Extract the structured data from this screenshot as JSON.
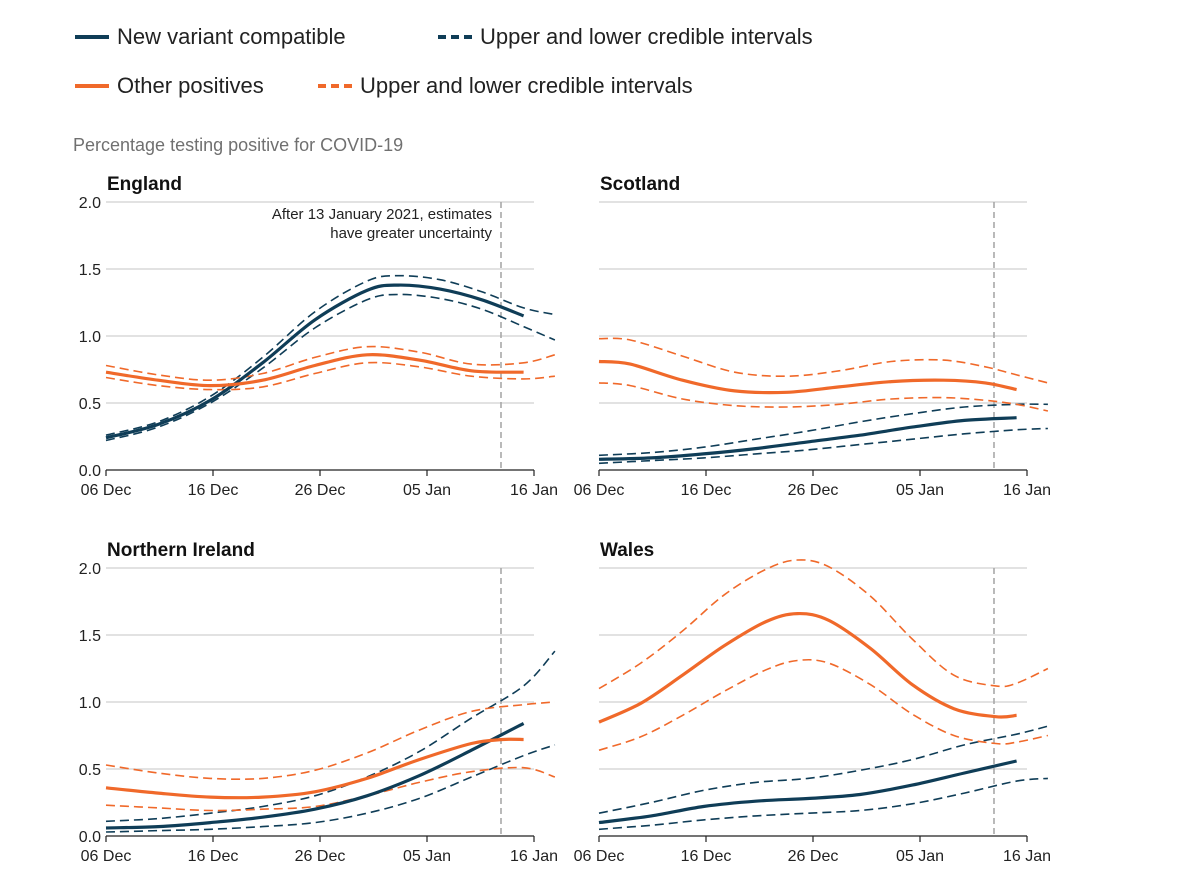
{
  "legend": {
    "items": [
      {
        "label": "New variant compatible",
        "style": "solid",
        "color": "#0f3d57"
      },
      {
        "label": "Upper and lower credible intervals",
        "style": "dashed",
        "color": "#0f3d57"
      },
      {
        "label": "Other positives",
        "style": "solid",
        "color": "#f0692a"
      },
      {
        "label": "Upper and lower credible intervals",
        "style": "dashed",
        "color": "#f0692a"
      }
    ]
  },
  "y_title": "Percentage testing positive for COVID-19",
  "colors": {
    "new_variant": "#0f3d57",
    "other": "#f0692a",
    "grid": "#d0d0d0",
    "axis": "#222222",
    "ref_line": "#a8a8a8"
  },
  "chart_data": [
    {
      "type": "line",
      "title": "England",
      "annotation": [
        "After 13 January 2021, estimates",
        "have greater uncertainty"
      ],
      "ref_line_date": "13 Jan",
      "x_ticks": [
        "06 Dec",
        "16 Dec",
        "26 Dec",
        "05 Jan",
        "16 Jan"
      ],
      "y_ticks": [
        "0.0",
        "0.5",
        "1.0",
        "1.5",
        "2.0"
      ],
      "ylim": [
        0,
        2
      ],
      "series": [
        {
          "name": "New variant compatible",
          "role": "main",
          "color": "#0f3d57",
          "x": [
            0,
            5,
            10,
            15,
            20,
            25,
            28,
            32,
            36,
            40
          ],
          "y": [
            0.24,
            0.34,
            0.52,
            0.8,
            1.12,
            1.34,
            1.38,
            1.35,
            1.27,
            1.15
          ]
        },
        {
          "name": "Upper and lower credible intervals",
          "role": "ci",
          "color": "#0f3d57",
          "x": [
            0,
            5,
            10,
            15,
            20,
            25,
            28,
            32,
            36,
            40,
            43
          ],
          "y": [
            0.26,
            0.36,
            0.55,
            0.84,
            1.18,
            1.41,
            1.45,
            1.42,
            1.33,
            1.21,
            1.16
          ]
        },
        {
          "role": "ci",
          "color": "#0f3d57",
          "x": [
            0,
            5,
            10,
            15,
            20,
            25,
            28,
            32,
            36,
            40,
            43
          ],
          "y": [
            0.22,
            0.32,
            0.5,
            0.76,
            1.06,
            1.27,
            1.31,
            1.28,
            1.2,
            1.07,
            0.97
          ]
        },
        {
          "name": "Other positives",
          "role": "main",
          "color": "#f0692a",
          "x": [
            0,
            5,
            10,
            15,
            20,
            25,
            30,
            35,
            40
          ],
          "y": [
            0.73,
            0.67,
            0.63,
            0.67,
            0.78,
            0.86,
            0.82,
            0.74,
            0.73
          ]
        },
        {
          "name": "Upper and lower credible intervals",
          "role": "ci",
          "color": "#f0692a",
          "x": [
            0,
            5,
            10,
            15,
            20,
            25,
            30,
            35,
            40,
            43
          ],
          "y": [
            0.78,
            0.71,
            0.67,
            0.72,
            0.84,
            0.92,
            0.88,
            0.79,
            0.8,
            0.86
          ]
        },
        {
          "role": "ci",
          "color": "#f0692a",
          "x": [
            0,
            5,
            10,
            15,
            20,
            25,
            30,
            35,
            40,
            43
          ],
          "y": [
            0.69,
            0.63,
            0.6,
            0.62,
            0.72,
            0.8,
            0.77,
            0.7,
            0.68,
            0.7
          ]
        }
      ]
    },
    {
      "type": "line",
      "title": "Scotland",
      "ref_line_date": "13 Jan",
      "x_ticks": [
        "06 Dec",
        "16 Dec",
        "26 Dec",
        "05 Jan",
        "16 Jan"
      ],
      "y_ticks": [
        "0.0",
        "0.5",
        "1.0",
        "1.5",
        "2.0"
      ],
      "ylim": [
        0,
        2
      ],
      "series": [
        {
          "name": "New variant compatible",
          "role": "main",
          "color": "#0f3d57",
          "x": [
            0,
            5,
            10,
            15,
            20,
            25,
            30,
            35,
            40
          ],
          "y": [
            0.08,
            0.09,
            0.12,
            0.16,
            0.21,
            0.26,
            0.32,
            0.37,
            0.39
          ]
        },
        {
          "name": "Upper and lower credible intervals",
          "role": "ci",
          "color": "#0f3d57",
          "x": [
            0,
            5,
            10,
            15,
            20,
            25,
            30,
            35,
            40,
            43
          ],
          "y": [
            0.11,
            0.13,
            0.17,
            0.23,
            0.29,
            0.36,
            0.42,
            0.47,
            0.49,
            0.49
          ]
        },
        {
          "role": "ci",
          "color": "#0f3d57",
          "x": [
            0,
            5,
            10,
            15,
            20,
            25,
            30,
            35,
            40,
            43
          ],
          "y": [
            0.05,
            0.07,
            0.09,
            0.12,
            0.15,
            0.19,
            0.23,
            0.27,
            0.3,
            0.31
          ]
        },
        {
          "name": "Other positives",
          "role": "main",
          "color": "#f0692a",
          "x": [
            0,
            3,
            8,
            13,
            18,
            23,
            28,
            33,
            37,
            40
          ],
          "y": [
            0.81,
            0.79,
            0.67,
            0.59,
            0.58,
            0.62,
            0.66,
            0.67,
            0.65,
            0.6
          ]
        },
        {
          "name": "Upper and lower credible intervals",
          "role": "ci",
          "color": "#f0692a",
          "x": [
            0,
            3,
            8,
            13,
            18,
            23,
            28,
            33,
            37,
            40,
            43
          ],
          "y": [
            0.98,
            0.97,
            0.85,
            0.73,
            0.7,
            0.74,
            0.81,
            0.82,
            0.77,
            0.71,
            0.65
          ]
        },
        {
          "role": "ci",
          "color": "#f0692a",
          "x": [
            0,
            3,
            8,
            13,
            18,
            23,
            28,
            33,
            37,
            40,
            43
          ],
          "y": [
            0.65,
            0.63,
            0.53,
            0.48,
            0.47,
            0.49,
            0.53,
            0.54,
            0.52,
            0.49,
            0.44
          ]
        }
      ]
    },
    {
      "type": "line",
      "title": "Northern Ireland",
      "ref_line_date": "13 Jan",
      "x_ticks": [
        "06 Dec",
        "16 Dec",
        "26 Dec",
        "05 Jan",
        "16 Jan"
      ],
      "y_ticks": [
        "0.0",
        "0.5",
        "1.0",
        "1.5",
        "2.0"
      ],
      "ylim": [
        0,
        2
      ],
      "series": [
        {
          "name": "New variant compatible",
          "role": "main",
          "color": "#0f3d57",
          "x": [
            0,
            5,
            10,
            15,
            20,
            25,
            30,
            35,
            40
          ],
          "y": [
            0.06,
            0.07,
            0.1,
            0.14,
            0.2,
            0.3,
            0.45,
            0.64,
            0.84
          ]
        },
        {
          "name": "Upper and lower credible intervals",
          "role": "ci",
          "color": "#0f3d57",
          "x": [
            0,
            5,
            10,
            15,
            20,
            25,
            30,
            35,
            40,
            43
          ],
          "y": [
            0.11,
            0.13,
            0.17,
            0.22,
            0.3,
            0.44,
            0.63,
            0.88,
            1.12,
            1.38
          ]
        },
        {
          "role": "ci",
          "color": "#0f3d57",
          "x": [
            0,
            5,
            10,
            15,
            20,
            25,
            30,
            35,
            40,
            43
          ],
          "y": [
            0.03,
            0.04,
            0.05,
            0.07,
            0.1,
            0.17,
            0.28,
            0.44,
            0.6,
            0.68
          ]
        },
        {
          "name": "Other positives",
          "role": "main",
          "color": "#f0692a",
          "x": [
            0,
            5,
            10,
            15,
            20,
            25,
            30,
            35,
            38,
            40
          ],
          "y": [
            0.36,
            0.32,
            0.29,
            0.29,
            0.33,
            0.43,
            0.57,
            0.69,
            0.72,
            0.72
          ]
        },
        {
          "name": "Upper and lower credible intervals",
          "role": "ci",
          "color": "#f0692a",
          "x": [
            0,
            5,
            10,
            15,
            20,
            25,
            30,
            35,
            40,
            43
          ],
          "y": [
            0.53,
            0.47,
            0.43,
            0.43,
            0.49,
            0.62,
            0.79,
            0.93,
            0.98,
            1.0
          ]
        },
        {
          "role": "ci",
          "color": "#f0692a",
          "x": [
            0,
            5,
            10,
            15,
            20,
            25,
            30,
            35,
            40,
            43
          ],
          "y": [
            0.23,
            0.21,
            0.19,
            0.2,
            0.22,
            0.3,
            0.4,
            0.48,
            0.51,
            0.44
          ]
        }
      ]
    },
    {
      "type": "line",
      "title": "Wales",
      "ref_line_date": "13 Jan",
      "x_ticks": [
        "06 Dec",
        "16 Dec",
        "26 Dec",
        "05 Jan",
        "16 Jan"
      ],
      "y_ticks": [
        "0.0",
        "0.5",
        "1.0",
        "1.5",
        "2.0"
      ],
      "ylim": [
        0,
        2
      ],
      "series": [
        {
          "name": "New variant compatible",
          "role": "main",
          "color": "#0f3d57",
          "x": [
            0,
            5,
            10,
            15,
            20,
            25,
            30,
            35,
            40
          ],
          "y": [
            0.1,
            0.15,
            0.22,
            0.26,
            0.28,
            0.31,
            0.38,
            0.47,
            0.56
          ]
        },
        {
          "name": "Upper and lower credible intervals",
          "role": "ci",
          "color": "#0f3d57",
          "x": [
            0,
            5,
            10,
            15,
            20,
            25,
            30,
            35,
            40,
            43
          ],
          "y": [
            0.17,
            0.25,
            0.34,
            0.4,
            0.43,
            0.49,
            0.57,
            0.68,
            0.76,
            0.82
          ]
        },
        {
          "role": "ci",
          "color": "#0f3d57",
          "x": [
            0,
            5,
            10,
            15,
            20,
            25,
            30,
            35,
            40,
            43
          ],
          "y": [
            0.05,
            0.08,
            0.12,
            0.15,
            0.17,
            0.19,
            0.24,
            0.32,
            0.41,
            0.43
          ]
        },
        {
          "name": "Other positives",
          "role": "main",
          "color": "#f0692a",
          "x": [
            0,
            4,
            8,
            12,
            16,
            19,
            22,
            26,
            30,
            34,
            38,
            40
          ],
          "y": [
            0.85,
            0.99,
            1.2,
            1.42,
            1.6,
            1.66,
            1.61,
            1.4,
            1.13,
            0.95,
            0.89,
            0.9
          ]
        },
        {
          "name": "Upper and lower credible intervals",
          "role": "ci",
          "color": "#f0692a",
          "x": [
            0,
            4,
            8,
            12,
            16,
            19,
            22,
            26,
            30,
            34,
            38,
            40,
            43
          ],
          "y": [
            1.1,
            1.29,
            1.53,
            1.8,
            1.99,
            2.06,
            2.01,
            1.79,
            1.47,
            1.2,
            1.12,
            1.14,
            1.25
          ]
        },
        {
          "role": "ci",
          "color": "#f0692a",
          "x": [
            0,
            4,
            8,
            12,
            16,
            19,
            22,
            26,
            30,
            34,
            38,
            40,
            43
          ],
          "y": [
            0.64,
            0.74,
            0.9,
            1.08,
            1.24,
            1.31,
            1.29,
            1.13,
            0.91,
            0.75,
            0.69,
            0.7,
            0.75
          ]
        }
      ]
    }
  ]
}
